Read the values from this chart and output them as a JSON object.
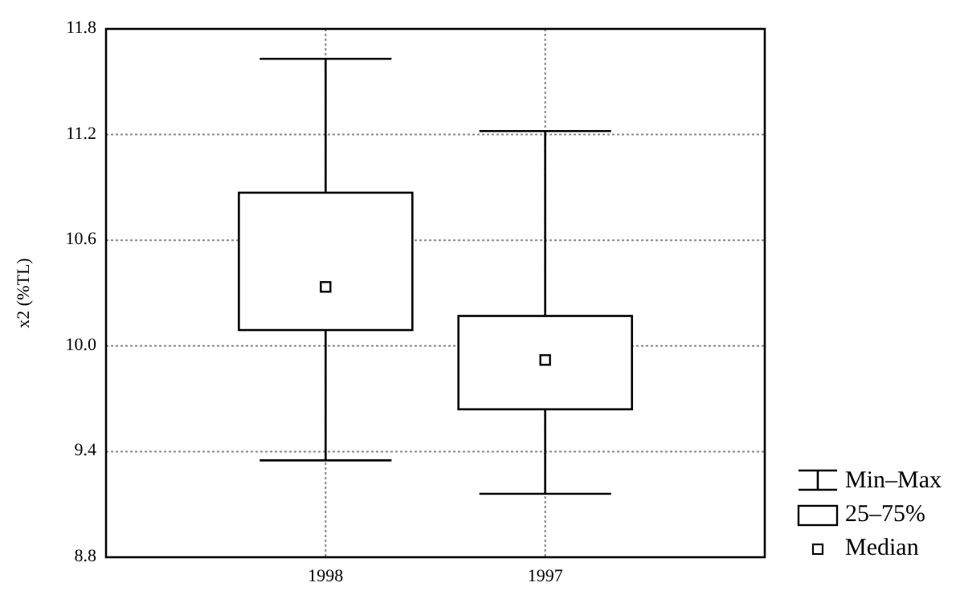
{
  "chart_data": {
    "type": "box",
    "ylabel": "x2 (%TL)",
    "categories": [
      "1998",
      "1997"
    ],
    "boxes": [
      {
        "low": 9.35,
        "q1": 10.09,
        "median": 10.335,
        "q3": 10.87,
        "high": 11.63
      },
      {
        "low": 9.16,
        "q1": 9.64,
        "median": 9.92,
        "q3": 10.17,
        "high": 11.22
      }
    ],
    "ylim": [
      8.8,
      11.8
    ],
    "yticks": [
      {
        "value": 8.8,
        "label": "8.8"
      },
      {
        "value": 9.4,
        "label": "9.4"
      },
      {
        "value": 10,
        "label": "10.0"
      },
      {
        "value": 10.6,
        "label": "10.6"
      },
      {
        "value": 11.2,
        "label": "11.2"
      },
      {
        "value": 11.8,
        "label": "11.8"
      }
    ],
    "grid": true,
    "annotations": [
      "Min–Max",
      "25–75%",
      "Median"
    ]
  }
}
